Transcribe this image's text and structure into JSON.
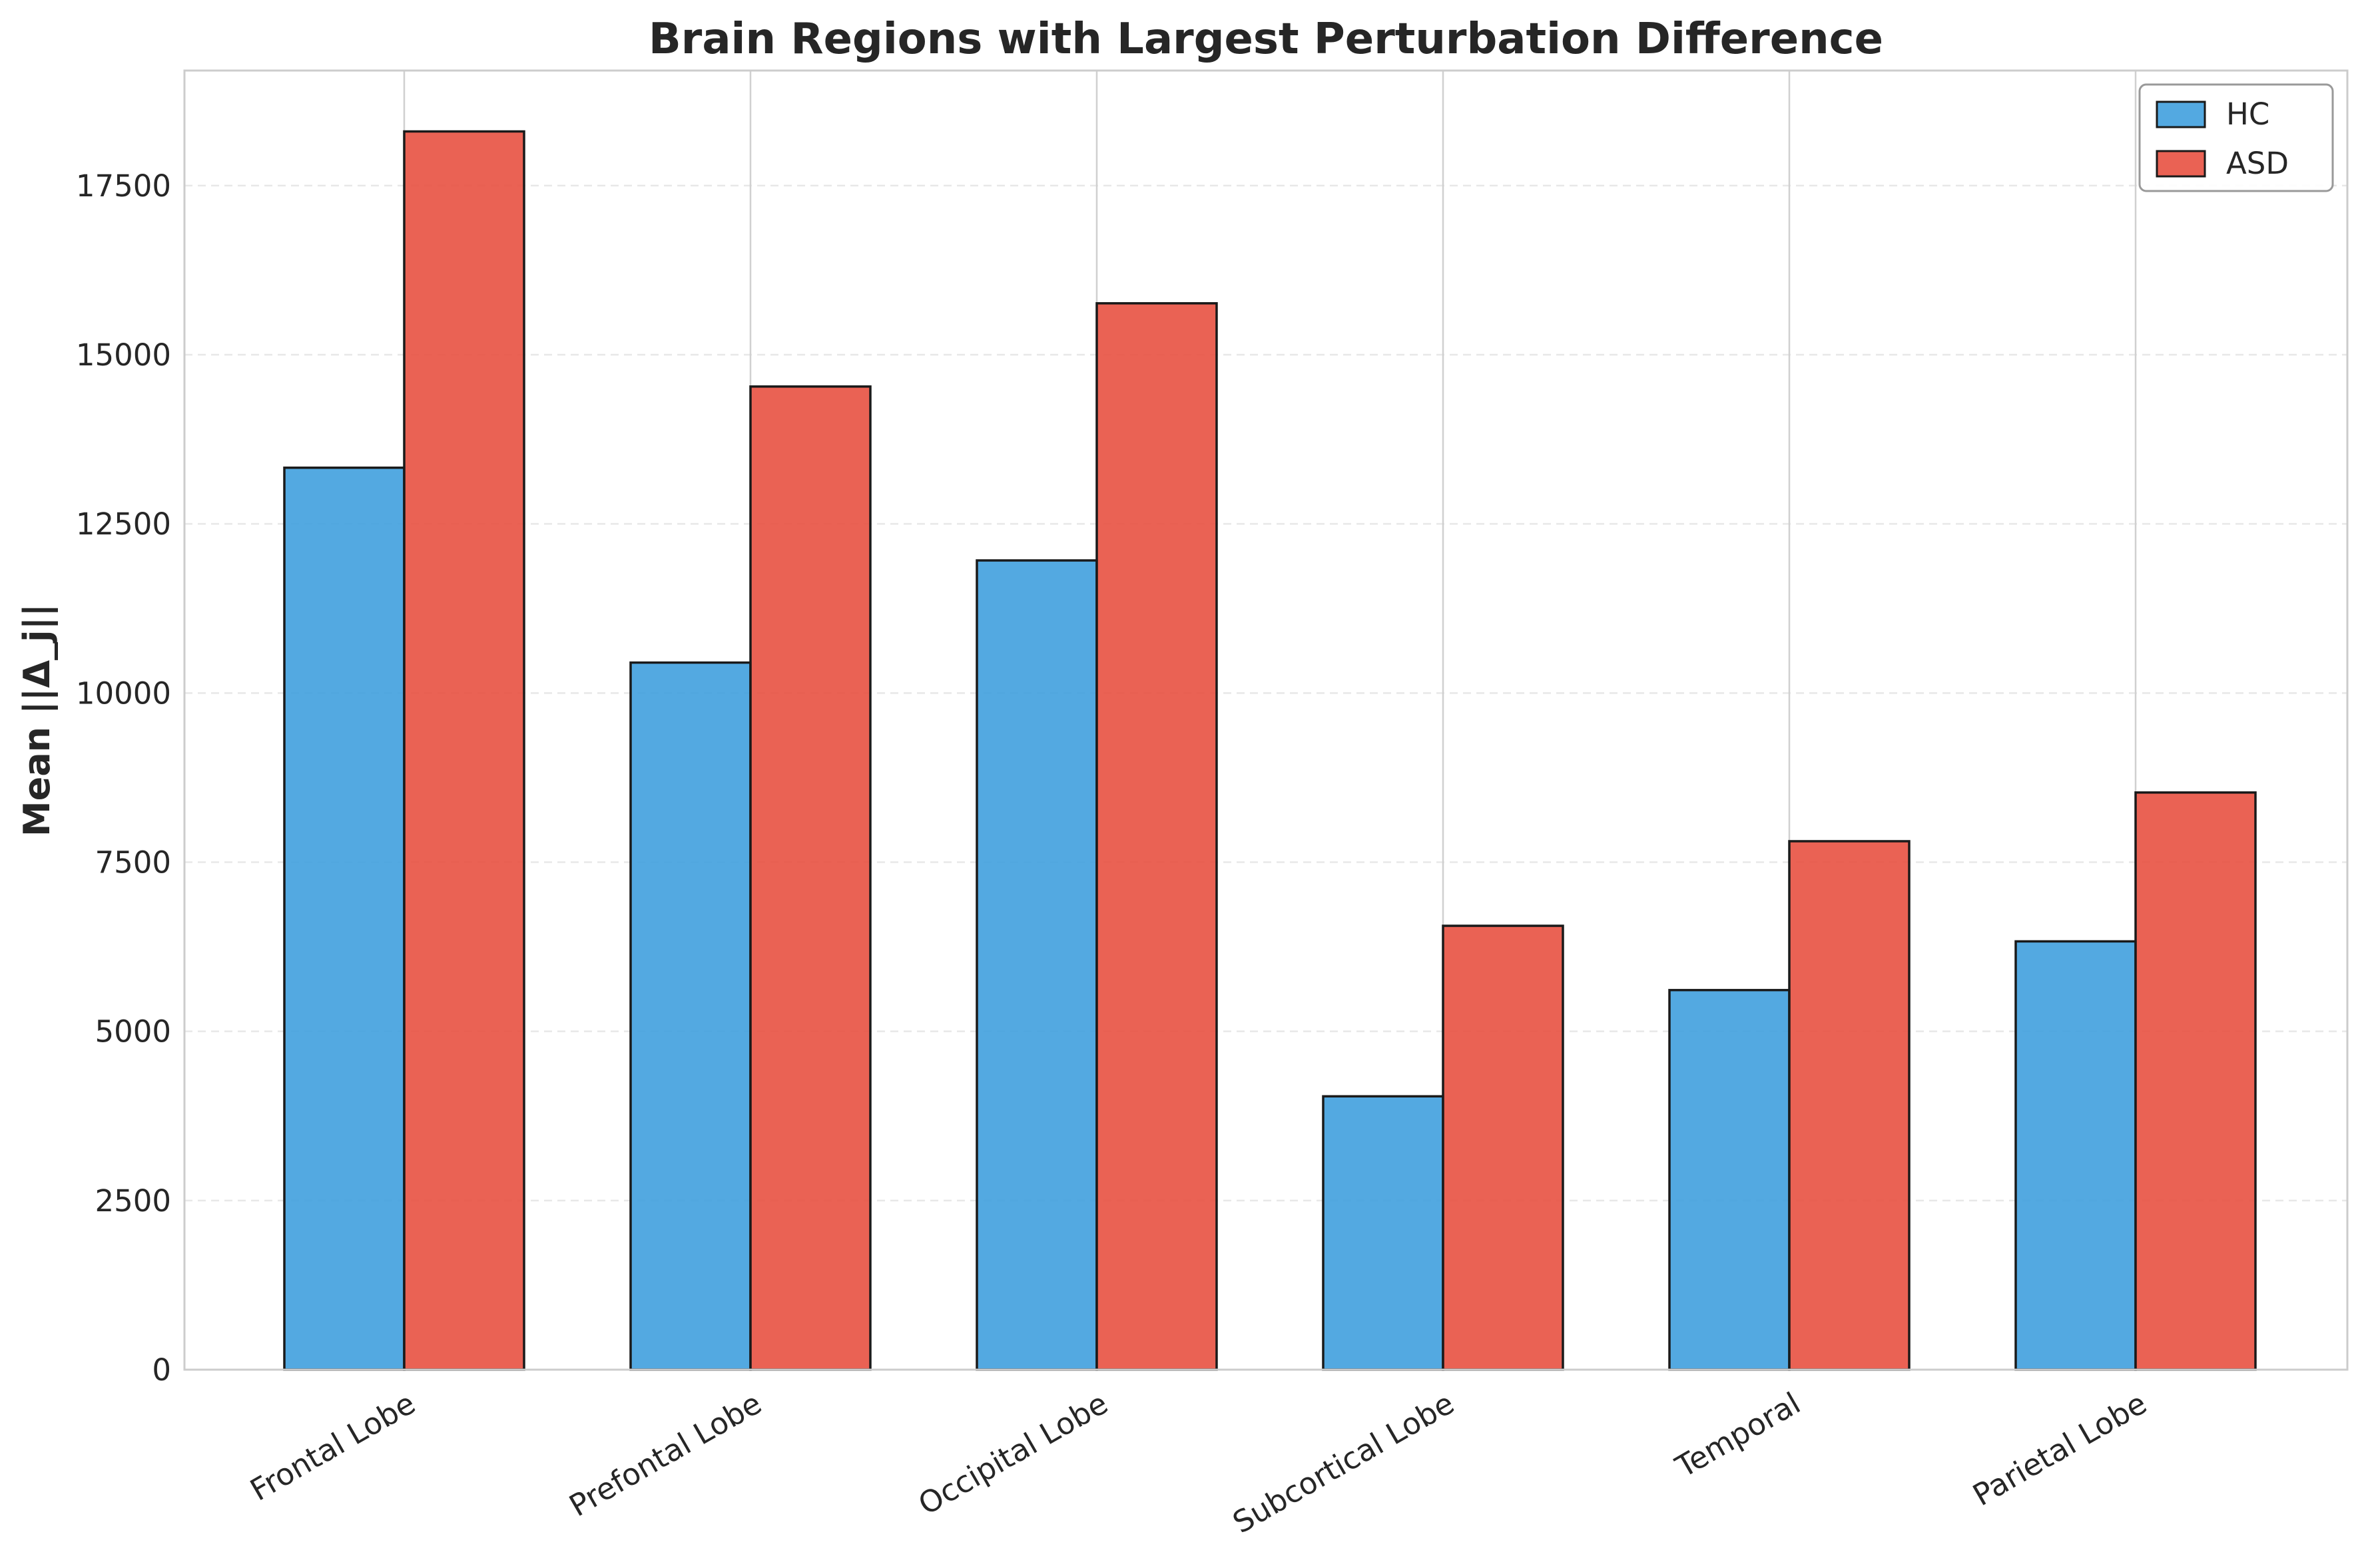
{
  "chart_data": {
    "type": "bar",
    "title": "Brain Regions with Largest Perturbation Difference",
    "xlabel": "",
    "ylabel": "Mean ||Δ_j||",
    "categories": [
      "Frontal Lobe",
      "Prefontal Lobe",
      "Occipital Lobe",
      "Subcortical Lobe",
      "Temporal",
      "Parietal Lobe"
    ],
    "series": [
      {
        "name": "HC",
        "color": "#3b9ddd",
        "values": [
          13330,
          10450,
          11960,
          4040,
          5610,
          6330
        ]
      },
      {
        "name": "ASD",
        "color": "#e74c3c",
        "values": [
          18300,
          14530,
          15760,
          6560,
          7810,
          8530
        ]
      }
    ],
    "ylim": [
      0,
      19200
    ],
    "yticks": [
      0,
      2500,
      5000,
      7500,
      10000,
      12500,
      15000,
      17500
    ],
    "ytick_labels": [
      "0",
      "2500",
      "5000",
      "7500",
      "10000",
      "12500",
      "15000",
      "17500"
    ],
    "grid": true,
    "legend_position": "top-right"
  }
}
